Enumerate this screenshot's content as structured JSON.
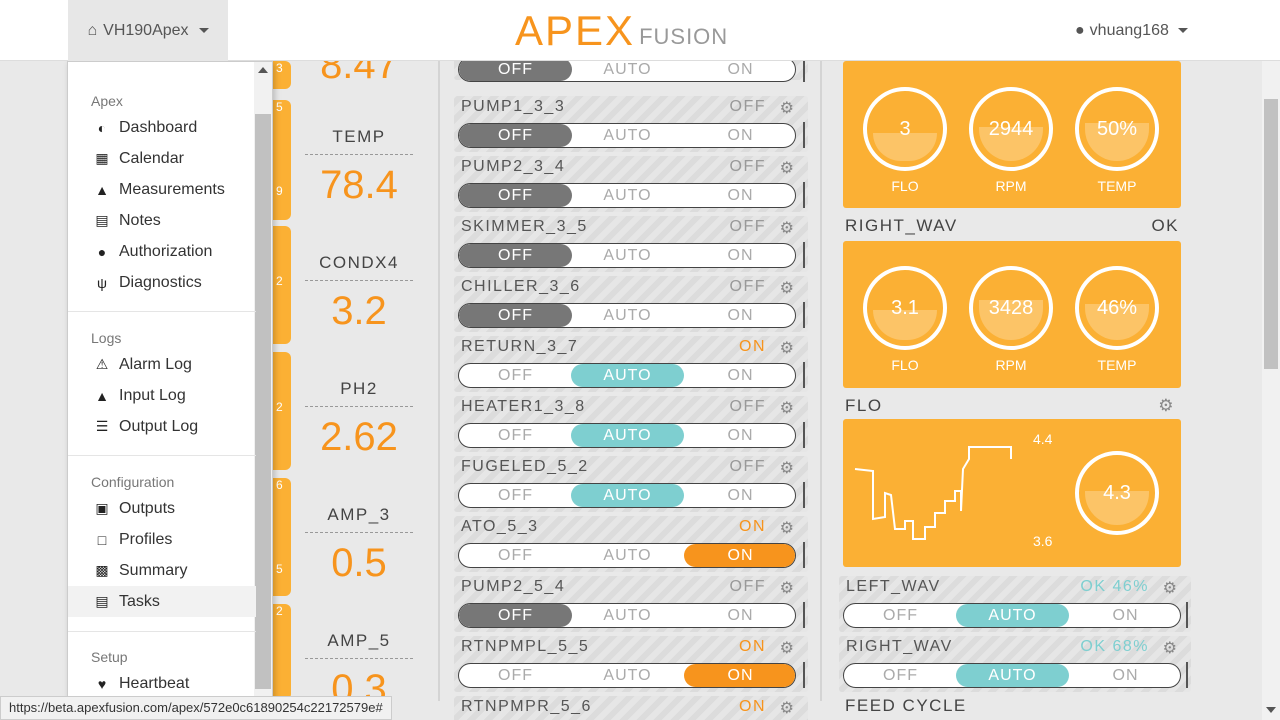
{
  "topbar": {
    "device": "VH190Apex",
    "logo_main": "APEX",
    "logo_sub": "FUSION",
    "user": "vhuang168"
  },
  "menu": {
    "groups": [
      {
        "title": "Apex",
        "items": [
          "Dashboard",
          "Calendar",
          "Measurements",
          "Notes",
          "Authorization",
          "Diagnostics"
        ]
      },
      {
        "title": "Logs",
        "items": [
          "Alarm Log",
          "Input Log",
          "Output Log"
        ]
      },
      {
        "title": "Configuration",
        "items": [
          "Outputs",
          "Profiles",
          "Summary",
          "Tasks"
        ]
      },
      {
        "title": "Setup",
        "items": [
          "Heartbeat"
        ]
      }
    ]
  },
  "stubs": [
    "3",
    "5",
    "9",
    "2",
    "2",
    "6",
    "5",
    "2"
  ],
  "inputs": [
    {
      "name": "",
      "value": "8.47"
    },
    {
      "name": "TEMP",
      "value": "78.4"
    },
    {
      "name": "CONDX4",
      "value": "3.2"
    },
    {
      "name": "PH2",
      "value": "2.62"
    },
    {
      "name": "AMP_3",
      "value": "0.5"
    },
    {
      "name": "AMP_5",
      "value": "0.3"
    }
  ],
  "switch_labels": [
    "OFF",
    "AUTO",
    "ON"
  ],
  "outlets": [
    {
      "name": "",
      "state": "",
      "mode": "off"
    },
    {
      "name": "PUMP1_3_3",
      "state": "OFF",
      "mode": "off"
    },
    {
      "name": "PUMP2_3_4",
      "state": "OFF",
      "mode": "off"
    },
    {
      "name": "SKIMMER_3_5",
      "state": "OFF",
      "mode": "off"
    },
    {
      "name": "CHILLER_3_6",
      "state": "OFF",
      "mode": "off"
    },
    {
      "name": "RETURN_3_7",
      "state": "ON",
      "mode": "auto"
    },
    {
      "name": "HEATER1_3_8",
      "state": "OFF",
      "mode": "auto"
    },
    {
      "name": "FUGELED_5_2",
      "state": "OFF",
      "mode": "auto"
    },
    {
      "name": "ATO_5_3",
      "state": "ON",
      "mode": "on"
    },
    {
      "name": "PUMP2_5_4",
      "state": "OFF",
      "mode": "off"
    },
    {
      "name": "RTNPMPL_5_5",
      "state": "ON",
      "mode": "on"
    },
    {
      "name": "RTNPMPR_5_6",
      "state": "ON",
      "mode": "on"
    }
  ],
  "right": {
    "wav1": {
      "gauges": [
        {
          "value": "3",
          "label": "FLO"
        },
        {
          "value": "2944",
          "label": "RPM"
        },
        {
          "value": "50%",
          "label": "TEMP"
        }
      ]
    },
    "wav2": {
      "title": "RIGHT_WAV",
      "status": "OK",
      "gauges": [
        {
          "value": "3.1",
          "label": "FLO"
        },
        {
          "value": "3428",
          "label": "RPM"
        },
        {
          "value": "46%",
          "label": "TEMP"
        }
      ]
    },
    "flo": {
      "title": "FLO",
      "max": "4.4",
      "min": "3.6",
      "value": "4.3"
    },
    "outlets": [
      {
        "name": "LEFT_WAV",
        "state": "OK 46%",
        "mode": "auto"
      },
      {
        "name": "RIGHT_WAV",
        "state": "OK 68%",
        "mode": "auto"
      }
    ],
    "feed_title": "FEED CYCLE"
  },
  "status_url": "https://beta.apexfusion.com/apex/572e0c61890254c22172579e#"
}
